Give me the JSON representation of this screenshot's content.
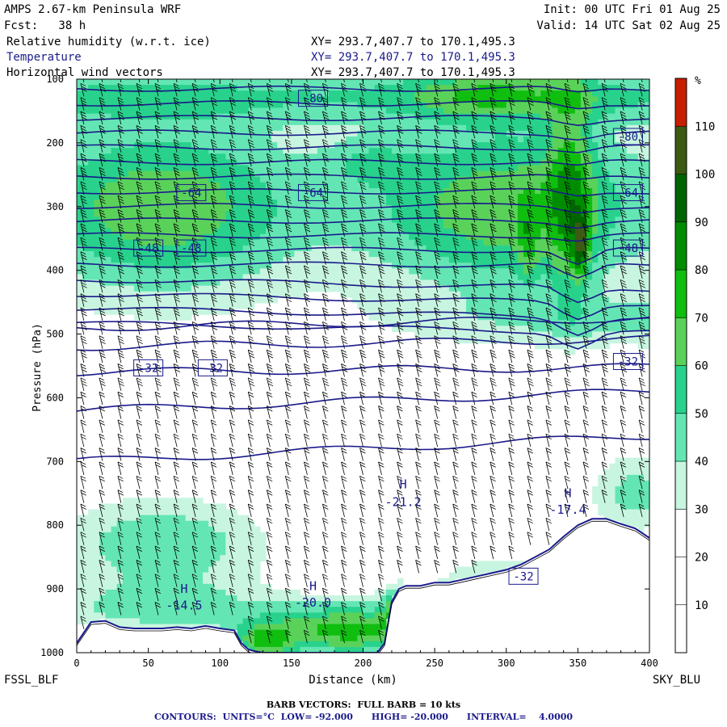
{
  "header": {
    "title": "AMPS 2.67-km Peninsula WRF",
    "forecast": "Fcst:   38 h",
    "init": "Init: 00 UTC Fri 01 Aug 25",
    "valid": "Valid: 14 UTC Sat 02 Aug 25",
    "fields": [
      {
        "name": "Relative humidity (w.r.t. ice)",
        "xy": "XY= 293.7,407.7 to 170.1,495.3"
      },
      {
        "name": "Temperature",
        "xy": "XY= 293.7,407.7 to 170.1,495.3"
      },
      {
        "name": "Horizontal wind vectors",
        "xy": "XY= 293.7,407.7 to 170.1,495.3"
      }
    ]
  },
  "corners": {
    "left": "FSSL_BLF",
    "right": "SKY_BLU"
  },
  "footer": {
    "barb": "BARB VECTORS:  FULL BARB = 10 kts",
    "contours": "CONTOURS:  UNITS=°C  LOW= -92.000      HIGH= -20.000      INTERVAL=    4.0000"
  },
  "colors": {
    "ramp": [
      "#ffffff",
      "#ffffff",
      "#ffffff",
      "#c8f5e0",
      "#64e6b4",
      "#28d28c",
      "#5ad25a",
      "#10be10",
      "#008c00",
      "#006400",
      "#3c5a14",
      "#c81e00"
    ],
    "contour": "#1a1a8c"
  },
  "chart_data": {
    "type": "heatmap",
    "title": "Relative humidity (w.r.t. ice)",
    "xlabel": "Distance (km)",
    "ylabel": "Pressure (hPa)",
    "xlim": [
      0,
      400
    ],
    "ylim": [
      1000,
      100
    ],
    "x_ticks": [
      0,
      50,
      100,
      150,
      200,
      250,
      300,
      350,
      400
    ],
    "y_ticks": [
      100,
      200,
      300,
      400,
      500,
      600,
      700,
      800,
      900,
      1000
    ],
    "colorbar": {
      "unit": "%",
      "labels": [
        10,
        20,
        30,
        40,
        50,
        60,
        70,
        80,
        90,
        100,
        110
      ],
      "bounds": [
        0,
        10,
        20,
        30,
        40,
        50,
        60,
        70,
        80,
        90,
        100,
        110,
        120
      ]
    },
    "temperature_labels": [
      {
        "text": "-80",
        "x": 165,
        "p": 130
      },
      {
        "text": "-80",
        "x": 385,
        "p": 190
      },
      {
        "text": "-64",
        "x": 80,
        "p": 278
      },
      {
        "text": "-64",
        "x": 165,
        "p": 278
      },
      {
        "text": "-64",
        "x": 385,
        "p": 278
      },
      {
        "text": "-48",
        "x": 50,
        "p": 365
      },
      {
        "text": "-48",
        "x": 80,
        "p": 365
      },
      {
        "text": "-48",
        "x": 385,
        "p": 365
      },
      {
        "text": "-32",
        "x": 50,
        "p": 553
      },
      {
        "text": "-32",
        "x": 95,
        "p": 553
      },
      {
        "text": "-32",
        "x": 385,
        "p": 543
      },
      {
        "text": "-32",
        "x": 312,
        "p": 880
      }
    ],
    "highs": [
      {
        "label": "H",
        "value": "-21.2",
        "x": 228,
        "p": 770,
        "label_p": 742
      },
      {
        "label": "H",
        "value": "-17.4",
        "x": 343,
        "p": 782,
        "label_p": 756
      },
      {
        "label": "H",
        "value": "-20.0",
        "x": 165,
        "p": 928,
        "label_p": 902
      },
      {
        "label": "H",
        "value": "-14.5",
        "x": 75,
        "p": 932,
        "label_p": 906
      }
    ],
    "terrain_profile": {
      "x": [
        0,
        10,
        20,
        30,
        40,
        50,
        60,
        70,
        80,
        90,
        100,
        110,
        115,
        120,
        125,
        130,
        140,
        150,
        160,
        170,
        180,
        190,
        200,
        210,
        215,
        220,
        225,
        230,
        240,
        250,
        260,
        270,
        280,
        290,
        300,
        310,
        320,
        330,
        340,
        350,
        360,
        370,
        380,
        390,
        400
      ],
      "p": [
        985,
        952,
        950,
        960,
        962,
        962,
        962,
        960,
        962,
        958,
        962,
        965,
        985,
        995,
        998,
        1000,
        1000,
        1000,
        1000,
        1000,
        1000,
        1000,
        1000,
        1000,
        985,
        920,
        900,
        895,
        895,
        890,
        890,
        885,
        880,
        875,
        870,
        862,
        850,
        838,
        818,
        800,
        790,
        790,
        798,
        805,
        820
      ]
    }
  }
}
